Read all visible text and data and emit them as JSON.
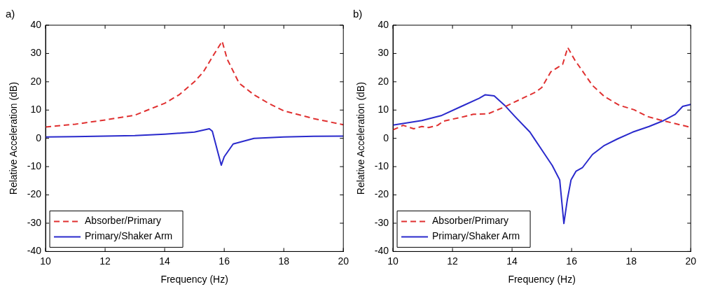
{
  "chart_data": [
    {
      "type": "line",
      "title": "a)",
      "xlabel": "Frequency (Hz)",
      "ylabel": "Relative Acceleration (dB)",
      "xlim": [
        10,
        20
      ],
      "xticks": [
        10,
        12,
        14,
        16,
        18,
        20
      ],
      "ylim": [
        -40,
        40
      ],
      "yticks": [
        -40,
        -30,
        -20,
        -10,
        0,
        10,
        20,
        30,
        40
      ],
      "grid": false,
      "legend": "bottom left",
      "marker": "none",
      "series": [
        {
          "name": "Absorber/Primary",
          "color": "#e03030",
          "line_style": "dashed",
          "x": [
            10,
            11,
            12,
            13,
            14,
            14.5,
            15,
            15.3,
            15.65,
            15.93,
            16.1,
            16.5,
            17,
            17.5,
            18,
            19,
            20
          ],
          "values": [
            4,
            5,
            6.5,
            8.2,
            12.4,
            15.5,
            20,
            23.5,
            29.6,
            34.3,
            28,
            19.5,
            15.4,
            12.3,
            9.7,
            7,
            4.8
          ]
        },
        {
          "name": "Primary/Shaker Arm",
          "color": "#2a2acc",
          "line_style": "solid",
          "x": [
            10,
            11,
            12,
            13,
            14,
            15,
            15.5,
            15.6,
            15.9,
            16,
            16.3,
            17,
            18,
            19,
            20
          ],
          "values": [
            0.5,
            0.6,
            0.8,
            1,
            1.5,
            2.2,
            3.4,
            2.5,
            -9.5,
            -6.5,
            -2,
            0,
            0.5,
            0.7,
            0.8
          ]
        }
      ]
    },
    {
      "type": "line",
      "title": "b)",
      "xlabel": "Frequency (Hz)",
      "ylabel": "Relative Acceleration (dB)",
      "xlim": [
        10,
        20
      ],
      "xticks": [
        10,
        12,
        14,
        16,
        18,
        20
      ],
      "ylim": [
        -40,
        40
      ],
      "yticks": [
        -40,
        -30,
        -20,
        -10,
        0,
        10,
        20,
        30,
        40
      ],
      "grid": false,
      "legend": "bottom left",
      "marker": "none",
      "series": [
        {
          "name": "Absorber/Primary",
          "color": "#e03030",
          "line_style": "dashed",
          "x": [
            10,
            10.34,
            10.7,
            10.97,
            11.2,
            11.5,
            11.7,
            12.4,
            12.7,
            13.2,
            13.7,
            14,
            14.8,
            15,
            15.3,
            15.7,
            15.87,
            16.1,
            16.7,
            17.1,
            17.6,
            18.1,
            18.55,
            18.97,
            19.4,
            20
          ],
          "values": [
            3,
            4.6,
            3.4,
            4.2,
            3.8,
            4.6,
            6.1,
            7.7,
            8.5,
            8.7,
            10.9,
            12.4,
            16.4,
            18,
            23.5,
            26.2,
            32.1,
            27.8,
            18.7,
            14.8,
            11.7,
            10.1,
            7.7,
            6.5,
            5.4,
            3.9
          ]
        },
        {
          "name": "Primary/Shaker Arm",
          "color": "#2a2acc",
          "line_style": "solid",
          "x": [
            10,
            10.97,
            11.64,
            12.3,
            12.9,
            13.1,
            13.4,
            13.75,
            14.1,
            14.6,
            15,
            15.35,
            15.6,
            15.74,
            15.86,
            15.98,
            16.15,
            16.36,
            16.7,
            17.1,
            17.54,
            18.05,
            18.6,
            19.05,
            19.48,
            19.73,
            20
          ],
          "values": [
            4.7,
            6.3,
            8.1,
            11.3,
            14.2,
            15.4,
            15,
            11.7,
            7.7,
            2.2,
            -4.1,
            -9.6,
            -14.7,
            -30.1,
            -21.4,
            -14.7,
            -11.6,
            -10.4,
            -5.7,
            -2.5,
            -0.2,
            2.2,
            4.2,
            6.1,
            8.5,
            11.3,
            12
          ]
        }
      ]
    }
  ]
}
